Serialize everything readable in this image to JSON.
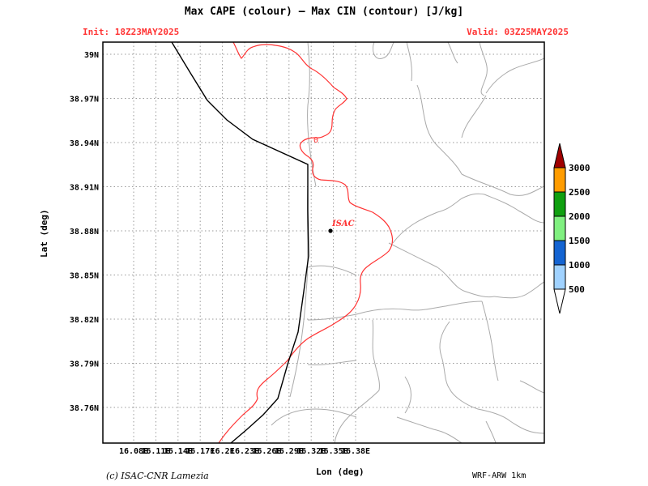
{
  "title": "Max CAPE (colour) — Max CIN (contour) [J/kg]",
  "init_label": "Init: 18Z23MAY2025",
  "valid_label": "Valid: 03Z25MAY2025",
  "xlabel": "Lon (deg)",
  "ylabel": "Lat (deg)",
  "copyright": "(c) ISAC-CNR Lamezia",
  "model_label": "WRF-ARW 1km",
  "station_label": "ISAC",
  "contour_label": "0",
  "x_ticks": [
    "16.08E",
    "16.11E",
    "16.14E",
    "16.17E",
    "16.2E",
    "16.23E",
    "16.26E",
    "16.29E",
    "16.32E",
    "16.35E",
    "16.38E"
  ],
  "y_ticks": [
    "39N",
    "38.97N",
    "38.94N",
    "38.91N",
    "38.88N",
    "38.85N",
    "38.82N",
    "38.79N",
    "38.76N"
  ],
  "colorbar": {
    "labels": [
      "3000",
      "2500",
      "2000",
      "1500",
      "1000",
      "500"
    ],
    "colors": [
      "#a00000",
      "#ff9c00",
      "#10a010",
      "#80f080",
      "#1464d2",
      "#a0d2ff"
    ]
  },
  "colors": {
    "contour": "#ff3333",
    "coastline": "#000000",
    "boundaries": "#aaaaaa",
    "grid": "#999999"
  }
}
